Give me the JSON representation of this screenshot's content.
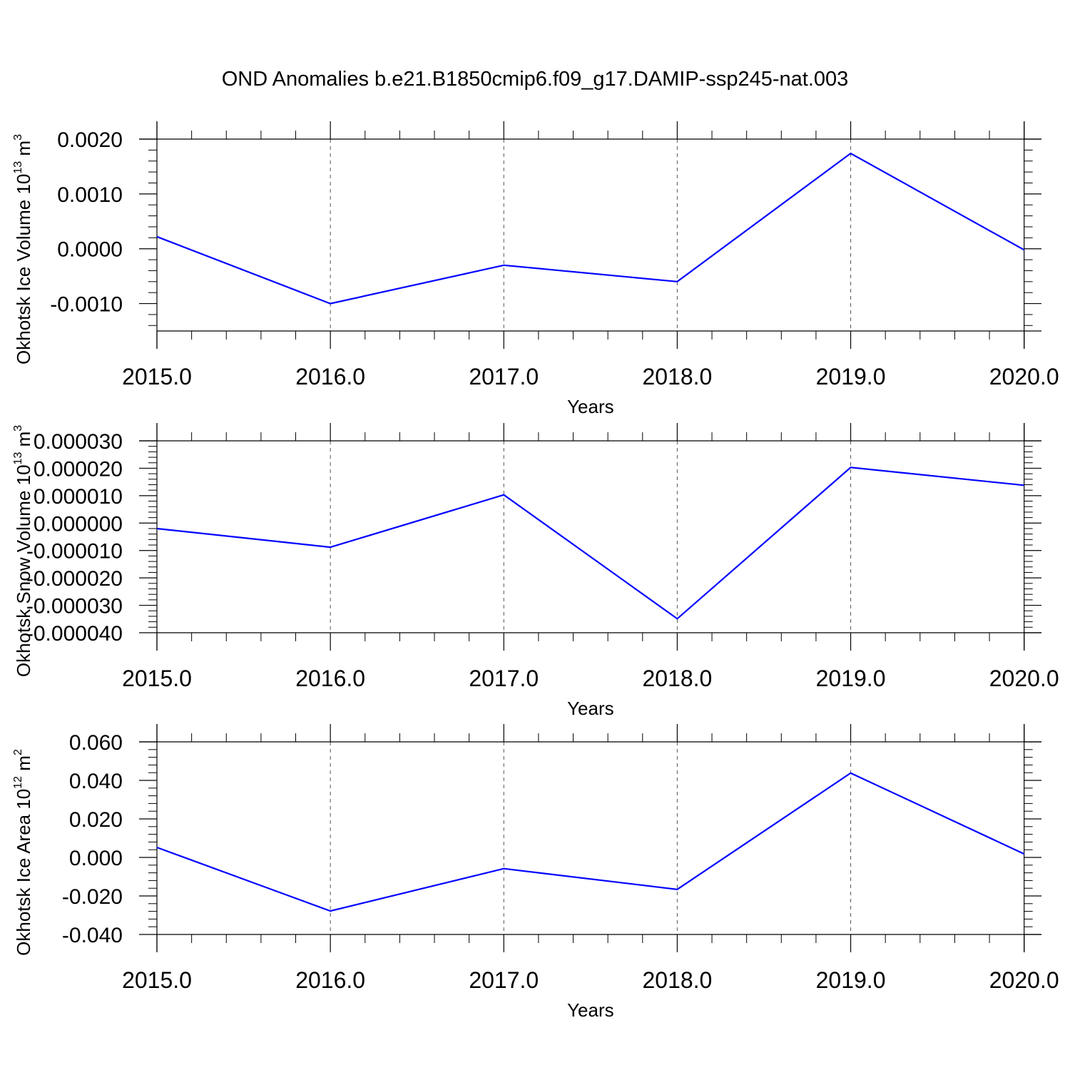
{
  "figure": {
    "title": "OND Anomalies b.e21.B1850cmip6.f09_g17.DAMIP-ssp245-nat.003",
    "line_color": "#0000ff",
    "grid_color": "#555555",
    "axis_color": "#000000"
  },
  "chart_data": [
    {
      "type": "line",
      "title": "",
      "xlabel": "Years",
      "ylabel": "Okhotsk Ice Volume 10",
      "ylabel_exp": "13",
      "ylabel_unit": " m",
      "ylabel_unit_exp": "3",
      "xlim": [
        2015,
        2020.1
      ],
      "ylim": [
        -0.0015,
        0.002
      ],
      "x_ticks": [
        2015,
        2016,
        2017,
        2018,
        2019,
        2020
      ],
      "x_tick_labels": [
        "2015.0",
        "2016.0",
        "2017.0",
        "2018.0",
        "2019.0",
        "2020.0"
      ],
      "y_ticks": [
        -0.001,
        0.0,
        0.001,
        0.002
      ],
      "y_tick_labels": [
        "-0.0010",
        "0.0000",
        "0.0010",
        "0.0020"
      ],
      "y_minor_step": 0.0002,
      "vertical_grid": true,
      "x": [
        2015,
        2016,
        2017,
        2018,
        2019,
        2020
      ],
      "series": [
        {
          "values": [
            0.00022,
            -0.001,
            -0.0003,
            -0.0006,
            0.00174,
            -2e-05
          ]
        }
      ]
    },
    {
      "type": "line",
      "title": "",
      "xlabel": "Years",
      "ylabel": "Okhotsk Snow Volume 10",
      "ylabel_exp": "13",
      "ylabel_unit": " m",
      "ylabel_unit_exp": "3",
      "xlim": [
        2015,
        2020.1
      ],
      "ylim": [
        -4e-05,
        3e-05
      ],
      "x_ticks": [
        2015,
        2016,
        2017,
        2018,
        2019,
        2020
      ],
      "x_tick_labels": [
        "2015.0",
        "2016.0",
        "2017.0",
        "2018.0",
        "2019.0",
        "2020.0"
      ],
      "y_ticks": [
        -4e-05,
        -3e-05,
        -2e-05,
        -1e-05,
        0.0,
        1e-05,
        2e-05,
        3e-05
      ],
      "y_tick_labels": [
        "-0.000040",
        "-0.000030",
        "-0.000020",
        "-0.000010",
        "0.000000",
        "0.000010",
        "0.000020",
        "0.000030"
      ],
      "y_minor_step": 2e-06,
      "vertical_grid": true,
      "x": [
        2015,
        2016,
        2017,
        2018,
        2019,
        2020
      ],
      "series": [
        {
          "values": [
            -2e-06,
            -8.8e-06,
            1.03e-05,
            -3.49e-05,
            2.03e-05,
            1.38e-05
          ]
        }
      ]
    },
    {
      "type": "line",
      "title": "",
      "xlabel": "Years",
      "ylabel": "Okhotsk Ice Area 10",
      "ylabel_exp": "12",
      "ylabel_unit": " m",
      "ylabel_unit_exp": "2",
      "xlim": [
        2015,
        2020.1
      ],
      "ylim": [
        -0.04,
        0.06
      ],
      "x_ticks": [
        2015,
        2016,
        2017,
        2018,
        2019,
        2020
      ],
      "x_tick_labels": [
        "2015.0",
        "2016.0",
        "2017.0",
        "2018.0",
        "2019.0",
        "2020.0"
      ],
      "y_ticks": [
        -0.04,
        -0.02,
        0.0,
        0.02,
        0.04,
        0.06
      ],
      "y_tick_labels": [
        "-0.040",
        "-0.020",
        "0.000",
        "0.020",
        "0.040",
        "0.060"
      ],
      "y_minor_step": 0.004,
      "vertical_grid": true,
      "x": [
        2015,
        2016,
        2017,
        2018,
        2019,
        2020
      ],
      "series": [
        {
          "values": [
            0.0052,
            -0.0278,
            -0.0058,
            -0.0166,
            0.0438,
            0.0018
          ]
        }
      ]
    }
  ]
}
